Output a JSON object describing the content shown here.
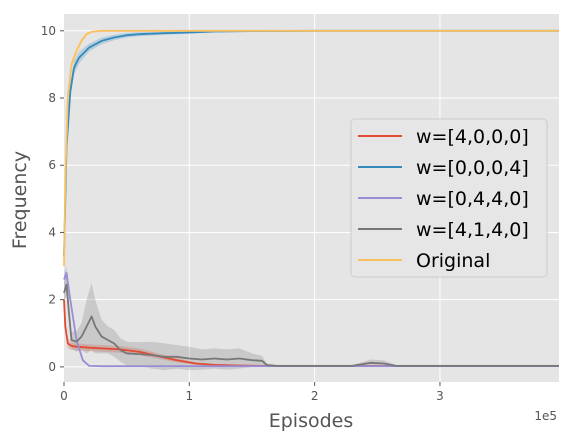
{
  "chart_data": {
    "type": "line",
    "xlabel": "Episodes",
    "ylabel": "Frequency",
    "x_offset_label": "1e5",
    "xlim": [
      0,
      3.95
    ],
    "ylim": [
      -0.45,
      10.5
    ],
    "x_ticks": [
      0,
      1,
      2,
      3
    ],
    "y_ticks": [
      0,
      2,
      4,
      6,
      8,
      10
    ],
    "grid": true,
    "legend_position": "center-right",
    "series": [
      {
        "name": "w=[4,0,0,0]",
        "color": "#E24A33",
        "x": [
          0,
          0.01,
          0.03,
          0.06,
          0.1,
          0.2,
          0.3,
          0.45,
          0.6,
          0.75,
          0.9,
          1.05,
          1.2,
          1.4,
          1.6,
          2.0,
          3.0,
          3.95
        ],
        "y": [
          2.0,
          1.2,
          0.7,
          0.62,
          0.6,
          0.57,
          0.55,
          0.52,
          0.45,
          0.32,
          0.2,
          0.1,
          0.06,
          0.04,
          0.03,
          0.03,
          0.03,
          0.03
        ],
        "band": [
          0.25,
          0.2,
          0.15,
          0.12,
          0.1,
          0.1,
          0.1,
          0.1,
          0.1,
          0.08,
          0.06,
          0.04,
          0.03,
          0.02,
          0.02,
          0.02,
          0.02,
          0.02
        ]
      },
      {
        "name": "w=[0,0,0,4]",
        "color": "#348ABD",
        "x": [
          0,
          0.02,
          0.05,
          0.08,
          0.12,
          0.2,
          0.3,
          0.4,
          0.5,
          0.6,
          0.8,
          1.0,
          1.2,
          1.5,
          2.0,
          3.0,
          3.95
        ],
        "y": [
          3.3,
          6.5,
          8.2,
          8.9,
          9.2,
          9.5,
          9.7,
          9.8,
          9.87,
          9.9,
          9.93,
          9.95,
          9.98,
          9.99,
          10.0,
          10.0,
          10.0
        ],
        "band": [
          0.3,
          0.3,
          0.25,
          0.2,
          0.18,
          0.12,
          0.1,
          0.08,
          0.07,
          0.06,
          0.05,
          0.04,
          0.03,
          0.02,
          0.02,
          0.02,
          0.02
        ]
      },
      {
        "name": "w=[0,4,4,0]",
        "color": "#988ED5",
        "x": [
          0,
          0.02,
          0.05,
          0.1,
          0.15,
          0.2,
          0.3,
          0.5,
          1.0,
          2.0,
          3.0,
          3.95
        ],
        "y": [
          2.6,
          2.8,
          2.0,
          0.8,
          0.2,
          0.03,
          0.02,
          0.02,
          0.02,
          0.02,
          0.02,
          0.02
        ],
        "band": [
          0.2,
          0.2,
          0.15,
          0.1,
          0.05,
          0.02,
          0.02,
          0.02,
          0.02,
          0.02,
          0.02,
          0.02
        ]
      },
      {
        "name": "w=[4,1,4,0]",
        "color": "#777777",
        "x": [
          0,
          0.02,
          0.04,
          0.06,
          0.1,
          0.14,
          0.18,
          0.22,
          0.25,
          0.3,
          0.35,
          0.4,
          0.45,
          0.5,
          0.6,
          0.7,
          0.8,
          0.9,
          1.0,
          1.1,
          1.2,
          1.3,
          1.4,
          1.5,
          1.58,
          1.62,
          1.7,
          2.0,
          2.3,
          2.45,
          2.55,
          2.65,
          2.8,
          3.2,
          3.95
        ],
        "y": [
          2.2,
          2.45,
          1.6,
          0.8,
          0.75,
          0.9,
          1.2,
          1.5,
          1.2,
          0.9,
          0.8,
          0.7,
          0.5,
          0.4,
          0.38,
          0.35,
          0.3,
          0.3,
          0.25,
          0.22,
          0.25,
          0.22,
          0.25,
          0.2,
          0.18,
          0.05,
          0.03,
          0.03,
          0.03,
          0.12,
          0.1,
          0.03,
          0.03,
          0.03,
          0.03
        ],
        "band": [
          0.3,
          0.3,
          0.3,
          0.25,
          0.3,
          0.4,
          0.8,
          1.0,
          0.8,
          0.5,
          0.4,
          0.4,
          0.35,
          0.35,
          0.35,
          0.4,
          0.4,
          0.35,
          0.35,
          0.3,
          0.3,
          0.3,
          0.3,
          0.2,
          0.15,
          0.05,
          0.03,
          0.03,
          0.03,
          0.1,
          0.1,
          0.03,
          0.03,
          0.03,
          0.03
        ]
      },
      {
        "name": "Original",
        "color": "#FBC15E",
        "x": [
          0,
          0.01,
          0.03,
          0.06,
          0.1,
          0.14,
          0.18,
          0.22,
          0.3,
          0.5,
          1.0,
          2.0,
          3.0,
          3.95
        ],
        "y": [
          3.0,
          5.5,
          8.0,
          9.0,
          9.4,
          9.7,
          9.9,
          9.97,
          10.0,
          10.0,
          10.0,
          10.0,
          10.0,
          10.0
        ],
        "band": [
          0.2,
          0.2,
          0.15,
          0.12,
          0.1,
          0.08,
          0.05,
          0.03,
          0.02,
          0.02,
          0.02,
          0.02,
          0.02,
          0.02
        ]
      }
    ]
  }
}
